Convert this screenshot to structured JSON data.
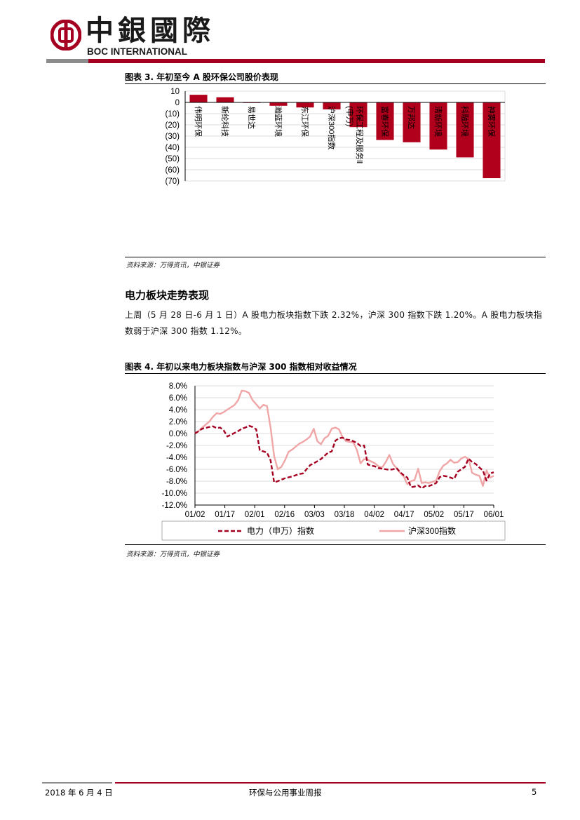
{
  "header": {
    "logo_cn": "中銀國際",
    "logo_en": "BOC INTERNATIONAL",
    "brand_color": "#a50021"
  },
  "figure3": {
    "title": "图表 3. 年初至今 A 股环保公司股价表现",
    "source": "资料来源：万得资讯，中银证券",
    "chart_data": {
      "type": "bar",
      "categories": [
        "伟明环保",
        "新纶科技",
        "易世达",
        "瀚蓝环境",
        "东江环保",
        "沪深300指数",
        "环保工程及服务Ⅱ(申万)",
        "富春环保",
        "万邦达",
        "清新环境",
        "科融环境",
        "神雾环保"
      ],
      "values": [
        6.8,
        4.6,
        -0.3,
        -3.0,
        -4.5,
        -6.2,
        -22.0,
        -33.5,
        -35.5,
        -42.0,
        -49.0,
        -67.5
      ],
      "ylim": [
        -70,
        10
      ],
      "yticks": [
        "10",
        "0",
        "(10)",
        "(20)",
        "(30)",
        "(40)",
        "(50)",
        "(60)",
        "(70)"
      ],
      "ytick_values": [
        10,
        0,
        -10,
        -20,
        -30,
        -40,
        -50,
        -60,
        -70
      ],
      "grid": true,
      "bar_color": "#b0001c"
    }
  },
  "section": {
    "heading": "电力板块走势表现",
    "paragraph": "上周（5 月 28 日-6 月 1 日）A 股电力板块指数下跌 2.32%，沪深 300 指数下跌 1.20%。A 股电力板块指数弱于沪深 300 指数 1.12%。"
  },
  "figure4": {
    "title": "图表 4. 年初以来电力板块指数与沪深 300 指数相对收益情况",
    "source": "资料来源：万得资讯，中银证券",
    "chart_data": {
      "type": "line",
      "x_ticks": [
        "01/02",
        "01/17",
        "02/01",
        "02/16",
        "03/03",
        "03/18",
        "04/02",
        "04/17",
        "05/02",
        "05/17",
        "06/01"
      ],
      "ylim": [
        -12,
        8
      ],
      "yticks": [
        "8.0%",
        "6.0%",
        "4.0%",
        "2.0%",
        "0.0%",
        "-2.0%",
        "-4.0%",
        "-6.0%",
        "-8.0%",
        "-10.0%",
        "-12.0%"
      ],
      "ytick_values": [
        8,
        6,
        4,
        2,
        0,
        -2,
        -4,
        -6,
        -8,
        -10,
        -12
      ],
      "grid": true,
      "legend_placement": "bottom",
      "series": [
        {
          "name": "电力（申万）指数",
          "color": "#a50021",
          "style": "dashed",
          "points": [
            [
              0,
              0
            ],
            [
              2,
              0.8
            ],
            [
              4,
              1.1
            ],
            [
              5,
              1.2
            ],
            [
              6,
              0.9
            ],
            [
              7,
              1.0
            ],
            [
              8,
              0.5
            ],
            [
              9,
              -0.5
            ],
            [
              10,
              -0.2
            ],
            [
              11,
              0.1
            ],
            [
              12,
              0.4
            ],
            [
              13,
              0.8
            ],
            [
              14,
              1.0
            ],
            [
              15,
              1.3
            ],
            [
              16,
              1.1
            ],
            [
              17,
              0.7
            ],
            [
              18,
              -2.8
            ],
            [
              19,
              -3.0
            ],
            [
              20,
              -3.2
            ],
            [
              21,
              -4.5
            ],
            [
              22,
              -8.2
            ],
            [
              23,
              -8.0
            ],
            [
              25,
              -7.5
            ],
            [
              27,
              -7.2
            ],
            [
              29,
              -6.8
            ],
            [
              30,
              -6.7
            ],
            [
              31,
              -6.0
            ],
            [
              32,
              -5.3
            ],
            [
              33,
              -5.0
            ],
            [
              35,
              -4.3
            ],
            [
              37,
              -3.2
            ],
            [
              38,
              -3.0
            ],
            [
              39,
              -1.2
            ],
            [
              40,
              -0.8
            ],
            [
              41,
              -0.7
            ],
            [
              42,
              -1.0
            ],
            [
              43,
              -1.1
            ],
            [
              44,
              -1.3
            ],
            [
              45,
              -1.6
            ],
            [
              46,
              -2.1
            ],
            [
              47,
              -2.0
            ],
            [
              48,
              -5.2
            ],
            [
              49,
              -5.4
            ],
            [
              50,
              -5.5
            ],
            [
              51,
              -5.8
            ],
            [
              52,
              -5.9
            ],
            [
              53,
              -6.0
            ],
            [
              54,
              -6.1
            ],
            [
              55,
              -6.0
            ],
            [
              56,
              -5.8
            ],
            [
              57,
              -6.5
            ],
            [
              58,
              -7.0
            ],
            [
              59,
              -7.4
            ],
            [
              60,
              -9.0
            ],
            [
              61,
              -8.9
            ],
            [
              62,
              -8.7
            ],
            [
              63,
              -9.2
            ],
            [
              64,
              -8.8
            ],
            [
              65,
              -8.8
            ],
            [
              66,
              -8.6
            ],
            [
              67,
              -8.3
            ],
            [
              68,
              -7.3
            ],
            [
              69,
              -7.1
            ],
            [
              70,
              -7.2
            ],
            [
              71,
              -7.4
            ],
            [
              72,
              -7.6
            ],
            [
              73,
              -6.4
            ],
            [
              74,
              -6.0
            ],
            [
              75,
              -5.6
            ],
            [
              76,
              -4.2
            ],
            [
              77,
              -4.8
            ],
            [
              78,
              -5.1
            ],
            [
              79,
              -5.7
            ],
            [
              80,
              -6.2
            ],
            [
              81,
              -7.9
            ],
            [
              82,
              -6.7
            ],
            [
              83,
              -6.5
            ]
          ]
        },
        {
          "name": "沪深300指数",
          "color": "#f0a6a6",
          "style": "solid",
          "points": [
            [
              0,
              0
            ],
            [
              1,
              0.4
            ],
            [
              2,
              1.0
            ],
            [
              3,
              1.5
            ],
            [
              4,
              2.0
            ],
            [
              5,
              2.8
            ],
            [
              6,
              3.4
            ],
            [
              7,
              3.3
            ],
            [
              8,
              3.6
            ],
            [
              9,
              4.0
            ],
            [
              10,
              4.4
            ],
            [
              11,
              4.8
            ],
            [
              12,
              5.6
            ],
            [
              13,
              7.2
            ],
            [
              14,
              7.1
            ],
            [
              15,
              6.8
            ],
            [
              16,
              5.6
            ],
            [
              17,
              4.9
            ],
            [
              18,
              4.2
            ],
            [
              19,
              4.8
            ],
            [
              20,
              4.6
            ],
            [
              21,
              1.0
            ],
            [
              22,
              -3.8
            ],
            [
              23,
              -6.0
            ],
            [
              24,
              -5.6
            ],
            [
              25,
              -4.5
            ],
            [
              26,
              -3.1
            ],
            [
              27,
              -2.7
            ],
            [
              28,
              -2.2
            ],
            [
              29,
              -1.7
            ],
            [
              30,
              -1.4
            ],
            [
              31,
              -1.0
            ],
            [
              32,
              -0.5
            ],
            [
              33,
              0.8
            ],
            [
              34,
              -1.3
            ],
            [
              35,
              -1.8
            ],
            [
              36,
              -0.8
            ],
            [
              37,
              -0.4
            ],
            [
              38,
              0.8
            ],
            [
              39,
              1.0
            ],
            [
              40,
              0.7
            ],
            [
              41,
              -0.6
            ],
            [
              42,
              -1.3
            ],
            [
              43,
              -1.4
            ],
            [
              44,
              -1.5
            ],
            [
              45,
              -2.8
            ],
            [
              46,
              -5.0
            ],
            [
              47,
              -4.3
            ],
            [
              48,
              -4.4
            ],
            [
              49,
              -4.7
            ],
            [
              50,
              -5.0
            ],
            [
              51,
              -5.5
            ],
            [
              52,
              -5.7
            ],
            [
              53,
              -4.8
            ],
            [
              54,
              -3.6
            ],
            [
              55,
              -5.1
            ],
            [
              56,
              -5.8
            ],
            [
              57,
              -6.6
            ],
            [
              58,
              -7.2
            ],
            [
              59,
              -8.5
            ],
            [
              60,
              -8.0
            ],
            [
              61,
              -7.8
            ],
            [
              62,
              -5.9
            ],
            [
              63,
              -8.3
            ],
            [
              64,
              -8.2
            ],
            [
              65,
              -8.3
            ],
            [
              66,
              -8.1
            ],
            [
              67,
              -7.9
            ],
            [
              68,
              -6.3
            ],
            [
              69,
              -5.4
            ],
            [
              70,
              -5.0
            ],
            [
              71,
              -4.4
            ],
            [
              72,
              -4.9
            ],
            [
              73,
              -4.8
            ],
            [
              74,
              -4.2
            ],
            [
              75,
              -3.9
            ],
            [
              76,
              -4.3
            ],
            [
              77,
              -6.6
            ],
            [
              78,
              -6.9
            ],
            [
              79,
              -7.1
            ],
            [
              80,
              -8.8
            ],
            [
              81,
              -6.2
            ],
            [
              82,
              -7.4
            ],
            [
              83,
              -7.1
            ]
          ]
        }
      ]
    }
  },
  "footer": {
    "date": "2018 年 6 月 4 日",
    "report_title": "环保与公用事业周报",
    "page_number": "5"
  }
}
